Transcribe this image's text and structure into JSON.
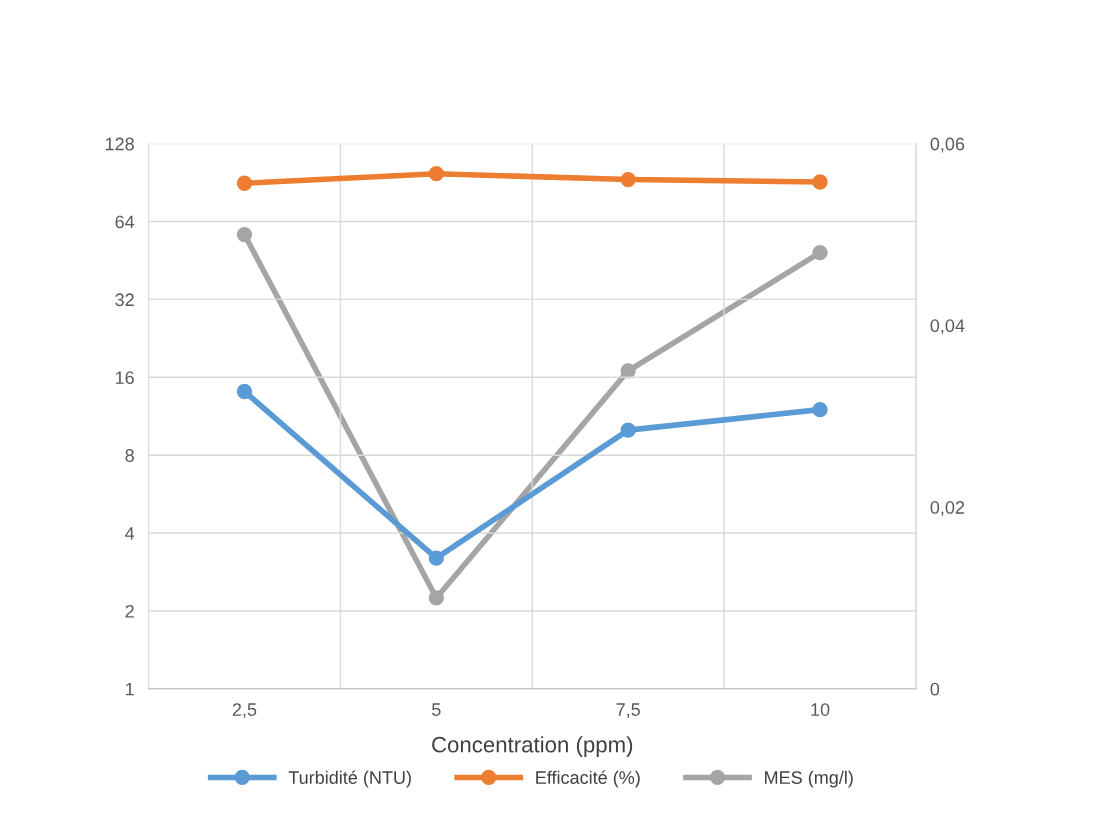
{
  "chart_data": {
    "type": "line",
    "xlabel": "Concentration (ppm)",
    "categories": [
      "2,5",
      "5",
      "7,5",
      "10"
    ],
    "series": [
      {
        "name": "Turbidité (NTU)",
        "color": "#5b9bd5",
        "values": [
          14.1,
          3.2,
          10.0,
          12.0
        ]
      },
      {
        "name": "Efficacité (%)",
        "color": "#ed7d31",
        "values": [
          90,
          98,
          93,
          91
        ]
      },
      {
        "name": "MES (mg/l)",
        "color": "#a5a5a5",
        "values": [
          0.05,
          0.01,
          0.035,
          0.048
        ],
        "axis": "y2"
      }
    ],
    "log": "y",
    "ylim": [
      1,
      128
    ],
    "yticks": [
      1,
      2,
      4,
      8,
      16,
      32,
      64,
      128
    ],
    "y2lim": [
      0,
      0.06
    ],
    "y2ticks": [
      {
        "value": 0,
        "label": "0"
      },
      {
        "value": 0.02,
        "label": "0,02"
      },
      {
        "value": 0.04,
        "label": "0,04"
      },
      {
        "value": 0.06,
        "label": "0,06"
      }
    ],
    "grid": true,
    "legend": "bottom",
    "marker": "circle",
    "line_style": "solid"
  }
}
